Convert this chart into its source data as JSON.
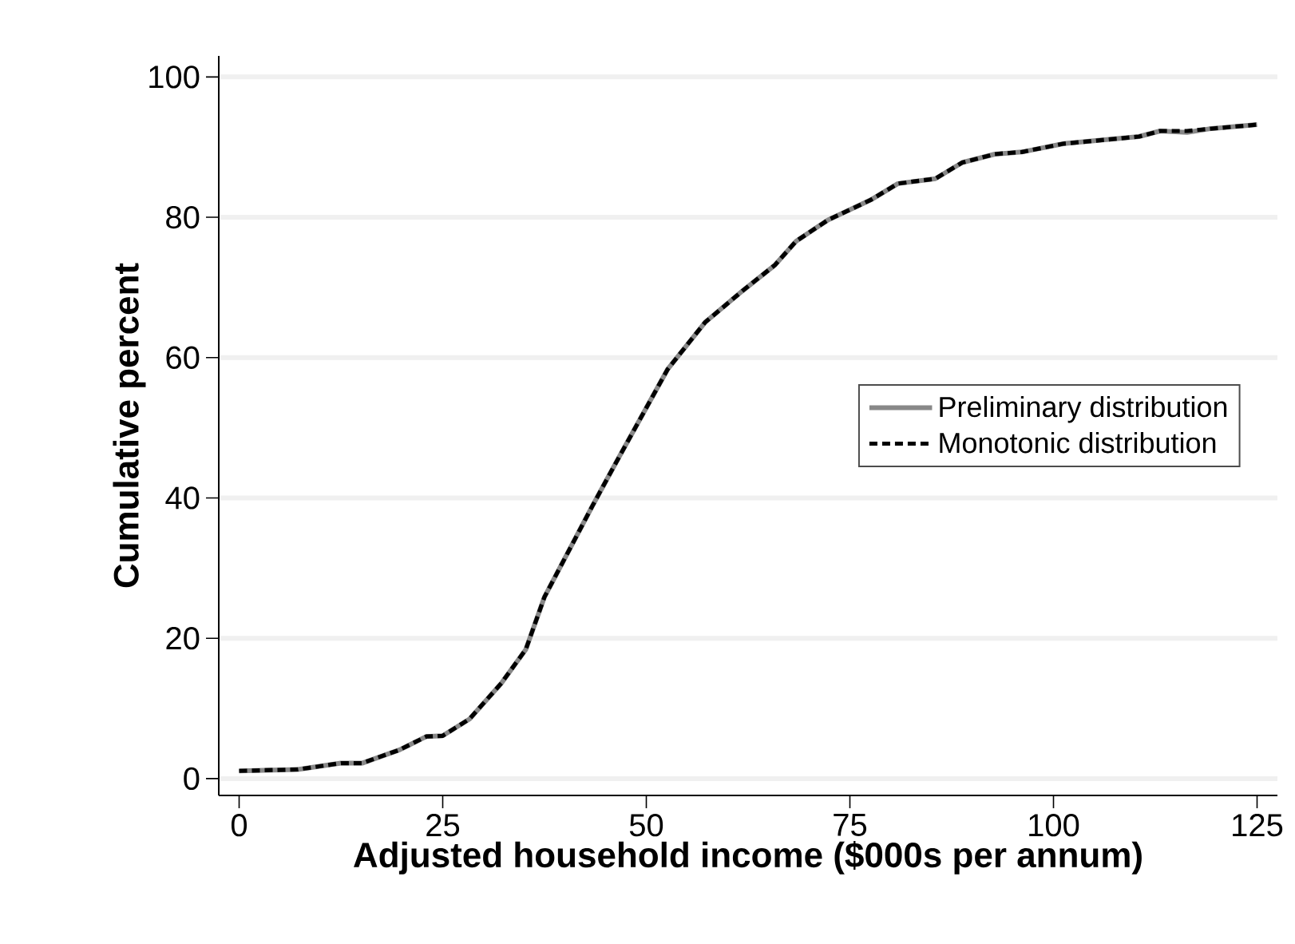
{
  "chart_data": {
    "type": "line",
    "xlabel": "Adjusted household income ($000s per annum)",
    "ylabel": "Cumulative percent",
    "x": [
      0,
      7.2,
      12.5,
      15.1,
      19.7,
      23.0,
      25,
      28.3,
      32.2,
      35.2,
      37.5,
      39.5,
      43.4,
      46.5,
      52.6,
      57.2,
      61.8,
      65.8,
      68.4,
      72.3,
      77.6,
      80.9,
      85.5,
      88.8,
      92.8,
      96.1,
      101.3,
      110.5,
      113.1,
      116.4,
      119.1,
      125
    ],
    "series": [
      {
        "name": "Preliminary distribution",
        "color": "#888888",
        "line_style": "solid",
        "values": [
          1.1,
          1.3,
          2.2,
          2.2,
          4.1,
          6.0,
          6.1,
          8.5,
          13.6,
          18.4,
          25.9,
          30.3,
          38.9,
          45.5,
          58.3,
          65.0,
          69.5,
          73.2,
          76.6,
          79.6,
          82.5,
          84.8,
          85.5,
          87.8,
          89.0,
          89.3,
          90.5,
          91.5,
          92.3,
          92.1,
          92.6,
          93.2
        ]
      },
      {
        "name": "Monotonic distribution",
        "color": "#000000",
        "line_style": "dashed",
        "values": [
          1.1,
          1.3,
          2.2,
          2.2,
          4.1,
          6.0,
          6.1,
          8.5,
          13.6,
          18.4,
          25.9,
          30.3,
          38.9,
          45.5,
          58.3,
          65.0,
          69.5,
          73.2,
          76.6,
          79.6,
          82.5,
          84.8,
          85.5,
          87.8,
          89.0,
          89.3,
          90.5,
          91.5,
          92.3,
          92.3,
          92.6,
          93.2
        ]
      }
    ],
    "xlim": [
      -2.5,
      127.5
    ],
    "ylim": [
      -2.4,
      103
    ],
    "xticks": [
      0,
      25,
      50,
      75,
      100,
      125
    ],
    "yticks": [
      0,
      20,
      40,
      60,
      80,
      100
    ],
    "grid": "y",
    "legend": "right",
    "marker": "none"
  }
}
